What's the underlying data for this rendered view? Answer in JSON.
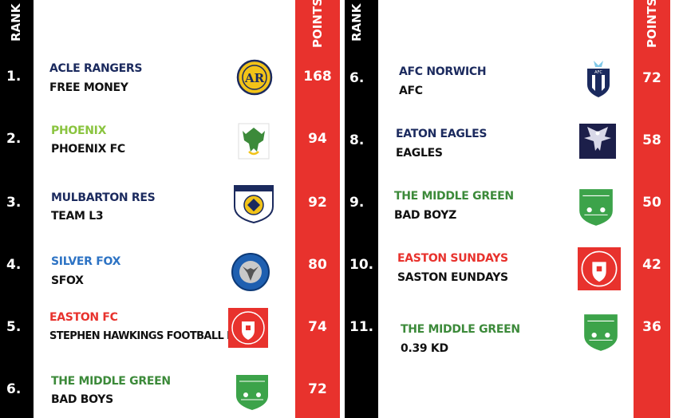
{
  "headers": {
    "rank_label": "RANK",
    "points_label": "POINTS"
  },
  "colors": {
    "rank_bar": "#000000",
    "points_bar": "#e8322d",
    "navy": "#1b2a5e",
    "green_light": "#8ac43f",
    "green": "#3c8a3a",
    "blue": "#2d73c4",
    "red": "#e8322d"
  },
  "left": [
    {
      "rank": "1.",
      "team": "ACLE RANGERS",
      "team_color": "#1b2a5e",
      "manager": "FREE MONEY",
      "points": "168",
      "crest": "ar-badge-icon"
    },
    {
      "rank": "2.",
      "team": "PHOENIX",
      "team_color": "#8ac43f",
      "manager": "PHOENIX FC",
      "points": "94",
      "crest": "phoenix-badge-icon"
    },
    {
      "rank": "3.",
      "team": "MULBARTON RES",
      "team_color": "#1b2a5e",
      "manager": "TEAM L3",
      "points": "92",
      "crest": "pride-of-norfolk-badge-icon"
    },
    {
      "rank": "4.",
      "team": "SILVER FOX",
      "team_color": "#2d73c4",
      "manager": "SFOX",
      "points": "80",
      "crest": "silver-fox-badge-icon"
    },
    {
      "rank": "5.",
      "team": "EASTON FC",
      "team_color": "#e8322d",
      "manager": "STEPHEN HAWKINGS FOOTBALL BOOTS",
      "points": "74",
      "crest": "easton-badge-icon"
    },
    {
      "rank": "6.",
      "team": "THE MIDDLE GREEN",
      "team_color": "#3c8a3a",
      "manager": "BAD BOYS",
      "points": "72",
      "crest": "middle-green-badge-icon"
    }
  ],
  "right": [
    {
      "rank": "6.",
      "team": "AFC NORWICH",
      "team_color": "#1b2a5e",
      "manager": "AFC",
      "points": "72",
      "crest": "afc-norwich-badge-icon"
    },
    {
      "rank": "8.",
      "team": "EATON EAGLES",
      "team_color": "#1b2a5e",
      "manager": "EAGLES",
      "points": "58",
      "crest": "eagle-badge-icon"
    },
    {
      "rank": "9.",
      "team": "THE MIDDLE GREEN",
      "team_color": "#3c8a3a",
      "manager": "BAD BOYZ",
      "points": "50",
      "crest": "middle-green-badge-icon"
    },
    {
      "rank": "10.",
      "team": "EASTON SUNDAYS",
      "team_color": "#e8322d",
      "manager": "SASTON EUNDAYS",
      "points": "42",
      "crest": "easton-badge-icon"
    },
    {
      "rank": "11.",
      "team": "THE MIDDLE GREEN",
      "team_color": "#3c8a3a",
      "manager": "0.39 KD",
      "points": "36",
      "crest": "middle-green-badge-icon"
    }
  ]
}
